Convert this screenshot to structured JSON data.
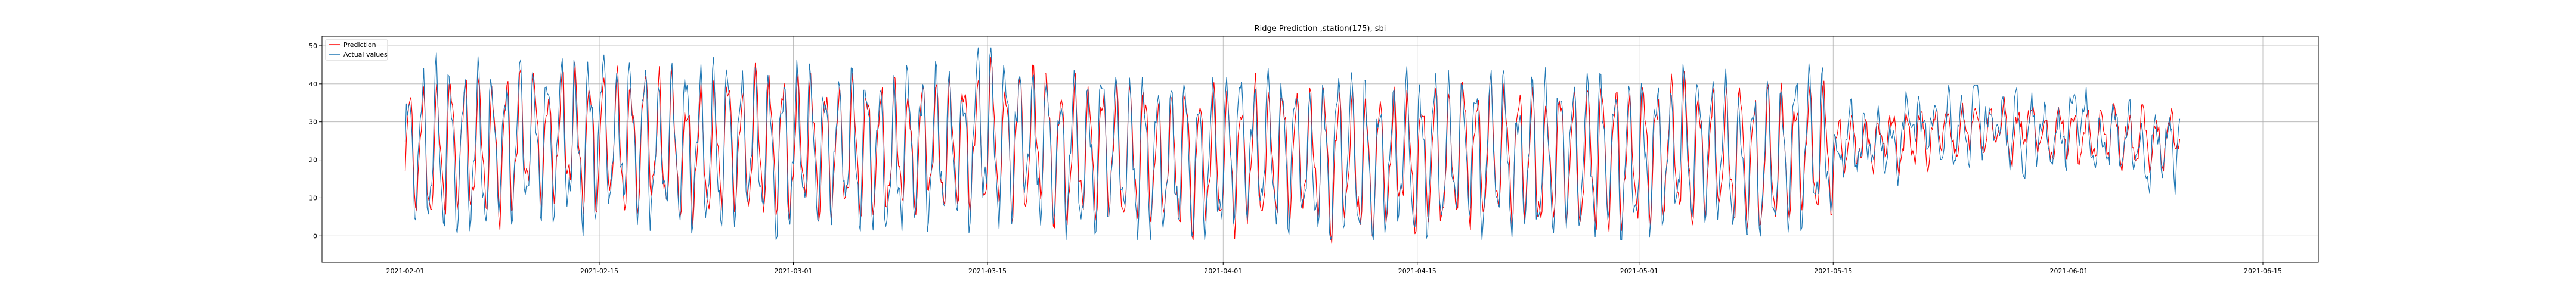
{
  "chart_data": {
    "type": "line",
    "title": "Ridge Prediction ,station(175), sbi",
    "xlabel": "",
    "ylabel": "",
    "x_start": "2021-02-01",
    "x_end": "2021-06-09",
    "xlim": [
      "2021-01-26",
      "2021-06-19"
    ],
    "ylim": [
      -7,
      52.5
    ],
    "yticks": [
      0,
      10,
      20,
      30,
      40,
      50
    ],
    "xticks": [
      "2021-02-01",
      "2021-02-15",
      "2021-03-01",
      "2021-03-15",
      "2021-04-01",
      "2021-04-15",
      "2021-05-01",
      "2021-05-15",
      "2021-06-01",
      "2021-06-15"
    ],
    "grid": true,
    "legend_position": "top-left",
    "series": [
      {
        "name": "Prediction",
        "color": "#ff0000",
        "x": [
          "2021-02-01",
          "2021-02-08",
          "2021-02-15",
          "2021-02-22",
          "2021-03-01",
          "2021-03-08",
          "2021-03-15",
          "2021-03-22",
          "2021-03-29",
          "2021-04-05",
          "2021-04-12",
          "2021-04-19",
          "2021-04-26",
          "2021-05-03",
          "2021-05-10",
          "2021-05-17",
          "2021-05-24",
          "2021-05-31",
          "2021-06-07"
        ],
        "values": [
          22,
          24,
          26,
          22,
          24,
          22,
          26,
          22,
          20,
          22,
          20,
          22,
          20,
          22,
          20,
          25,
          28,
          27,
          25
        ]
      },
      {
        "name": "Actual values",
        "color": "#1f77b4",
        "x": [
          "2021-02-01",
          "2021-02-08",
          "2021-02-15",
          "2021-02-22",
          "2021-03-01",
          "2021-03-08",
          "2021-03-15",
          "2021-03-22",
          "2021-03-29",
          "2021-04-05",
          "2021-04-12",
          "2021-04-19",
          "2021-04-26",
          "2021-05-03",
          "2021-05-10",
          "2021-05-17",
          "2021-05-24",
          "2021-05-31",
          "2021-06-07"
        ],
        "values": [
          22,
          24,
          26,
          22,
          24,
          22,
          26,
          22,
          20,
          22,
          20,
          22,
          20,
          22,
          20,
          25,
          28,
          27,
          25
        ]
      }
    ]
  }
}
